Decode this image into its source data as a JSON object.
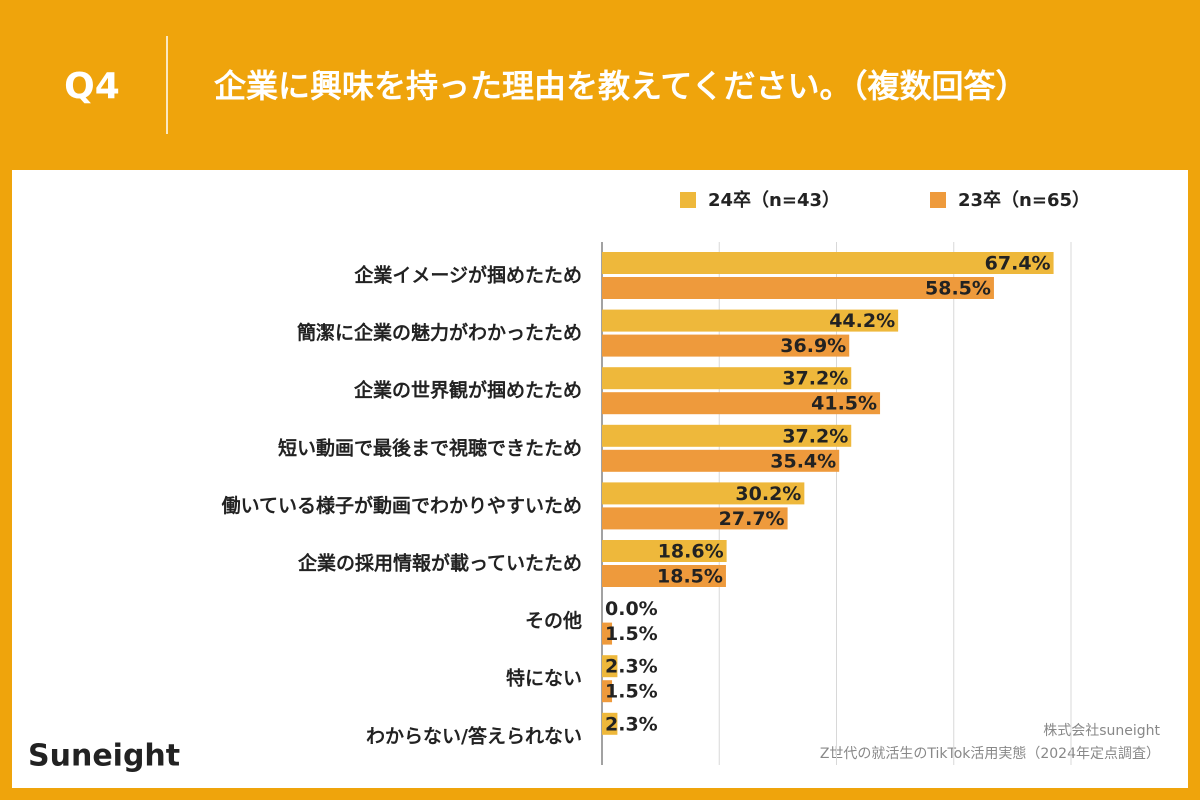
{
  "header": {
    "number": "Q4",
    "title": "企業に興味を持った理由を教えてください。（複数回答）"
  },
  "brand": "Suneight",
  "source": {
    "company": "株式会社suneight",
    "survey": "Z世代の就活生のTikTok活用実態（2024年定点調査）"
  },
  "chart_data": {
    "type": "hbar",
    "categories": [
      "企業イメージが掴めたため",
      "簡潔に企業の魅力がわかったため",
      "企業の世界観が掴めたため",
      "短い動画で最後まで視聴できたため",
      "働いている様子が動画でわかりやすいため",
      "企業の採用情報が載っていたため",
      "その他",
      "特にない",
      "わからない/答えられない"
    ],
    "series": [
      {
        "name": "24卒（n=43）",
        "color": "#EEB83B",
        "values": [
          67.4,
          44.2,
          37.2,
          37.2,
          30.2,
          18.6,
          0.0,
          2.3,
          2.3
        ],
        "value_labels": [
          "67.4%",
          "44.2%",
          "37.2%",
          "37.2%",
          "30.2%",
          "18.6%",
          "0.0%",
          "2.3%",
          "2.3%"
        ]
      },
      {
        "name": "23卒（n=65）",
        "color": "#EE9A3C",
        "values": [
          58.5,
          36.9,
          41.5,
          35.4,
          27.7,
          18.5,
          1.5,
          1.5,
          null
        ],
        "value_labels": [
          "58.5%",
          "36.9%",
          "41.5%",
          "35.4%",
          "27.7%",
          "18.5%",
          "1.5%",
          "1.5%",
          null
        ]
      }
    ],
    "xlim": [
      0,
      70
    ],
    "xticks": [
      0,
      17.5,
      35,
      52.5,
      70
    ],
    "grid": true,
    "legend": "top-right"
  }
}
